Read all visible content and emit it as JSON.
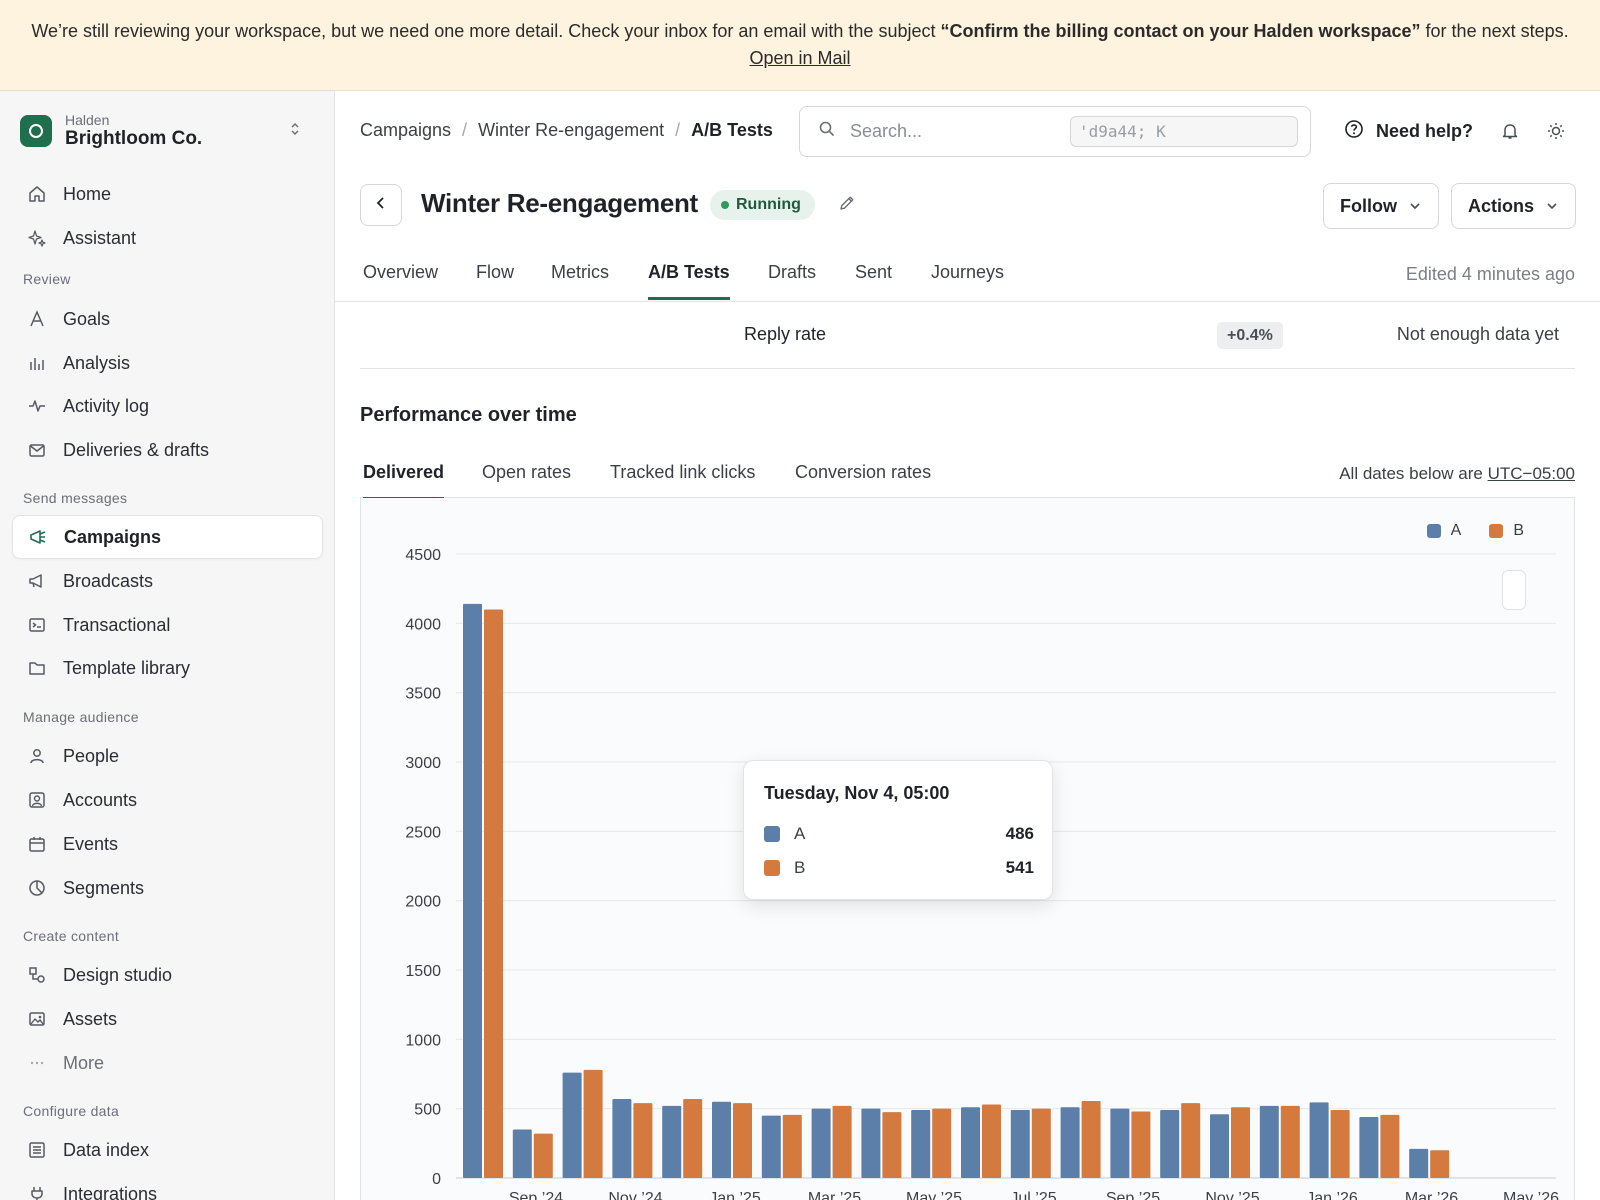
{
  "banner": {
    "text_before": "We’re still reviewing your workspace, but we need one more detail. Check your inbox for an email with the subject ",
    "subject": "“Confirm the billing contact on your Halden workspace”",
    "text_after": " for the next steps. ",
    "link": "Open in Mail"
  },
  "workspace": {
    "org": "Halden",
    "name": "Brightloom Co."
  },
  "sidebar": {
    "top": [
      {
        "label": "Home",
        "icon": "home-icon"
      },
      {
        "label": "Assistant",
        "icon": "sparkle-icon"
      }
    ],
    "sections": [
      {
        "title": "Review",
        "items": [
          {
            "label": "Goals",
            "icon": "goals-icon"
          },
          {
            "label": "Analysis",
            "icon": "bar-chart-icon"
          },
          {
            "label": "Activity log",
            "icon": "activity-icon"
          },
          {
            "label": "Deliveries & drafts",
            "icon": "envelope-icon"
          }
        ]
      },
      {
        "title": "Send messages",
        "items": [
          {
            "label": "Campaigns",
            "icon": "megaphone-icon",
            "active": true
          },
          {
            "label": "Broadcasts",
            "icon": "broadcast-icon"
          },
          {
            "label": "Transactional",
            "icon": "terminal-icon"
          },
          {
            "label": "Template library",
            "icon": "folder-icon"
          }
        ]
      },
      {
        "title": "Manage audience",
        "items": [
          {
            "label": "People",
            "icon": "person-icon"
          },
          {
            "label": "Accounts",
            "icon": "account-icon"
          },
          {
            "label": "Events",
            "icon": "calendar-icon"
          },
          {
            "label": "Segments",
            "icon": "pie-icon"
          }
        ]
      },
      {
        "title": "Create content",
        "items": [
          {
            "label": "Design studio",
            "icon": "shapes-icon"
          },
          {
            "label": "Assets",
            "icon": "image-icon"
          },
          {
            "label": "More",
            "icon": "more-icon"
          }
        ]
      },
      {
        "title": "Configure data",
        "items": [
          {
            "label": "Data index",
            "icon": "list-icon"
          },
          {
            "label": "Integrations",
            "icon": "plug-icon"
          }
        ]
      }
    ]
  },
  "header": {
    "breadcrumbs": [
      "Campaigns",
      "Winter Re-engagement",
      "A/B Tests"
    ],
    "search_placeholder": "Search...",
    "search_shortcut": "'d9a44; K",
    "help": "Need help?"
  },
  "page": {
    "title": "Winter Re-engagement",
    "status": "Running",
    "follow": "Follow",
    "actions": "Actions",
    "tabs": [
      "Overview",
      "Flow",
      "Metrics",
      "A/B Tests",
      "Drafts",
      "Sent",
      "Journeys"
    ],
    "active_tab": "A/B Tests",
    "edited": "Edited 4 minutes ago"
  },
  "metric": {
    "label": "Reply rate",
    "delta": "+0.4%",
    "note": "Not enough data yet"
  },
  "performance": {
    "title": "Performance over time",
    "tabs": [
      "Delivered",
      "Open rates",
      "Tracked link clicks",
      "Conversion rates"
    ],
    "active_tab": "Delivered",
    "tz_prefix": "All dates below are ",
    "tz": "UTC−05:00"
  },
  "colors": {
    "A": "#5b7fa8",
    "B": "#d47a3e",
    "accent": "#1f6f4f"
  },
  "chart_data": {
    "type": "bar",
    "ylim": [
      0,
      4500
    ],
    "yticks": [
      0,
      500,
      1000,
      1500,
      2000,
      2500,
      3000,
      3500,
      4000,
      4500
    ],
    "xticks": [
      "Sep ’24",
      "Nov ’24",
      "Jan ’25",
      "Mar ’25",
      "May ’25",
      "Jul ’25",
      "Sep ’25",
      "Nov ’25",
      "Jan ’26",
      "Mar ’26",
      "May ’26"
    ],
    "legend": [
      "A",
      "B"
    ],
    "series": [
      {
        "name": "A",
        "values": [
          4140,
          350,
          760,
          570,
          520,
          550,
          450,
          500,
          500,
          490,
          510,
          490,
          510,
          500,
          490,
          460,
          520,
          545,
          440,
          210
        ]
      },
      {
        "name": "B",
        "values": [
          4100,
          320,
          780,
          540,
          570,
          540,
          455,
          520,
          475,
          500,
          530,
          500,
          555,
          480,
          540,
          510,
          520,
          490,
          455,
          200
        ]
      }
    ],
    "tooltip": {
      "title": "Tuesday, Nov 4, 05:00",
      "A": 486,
      "B": 541
    }
  }
}
